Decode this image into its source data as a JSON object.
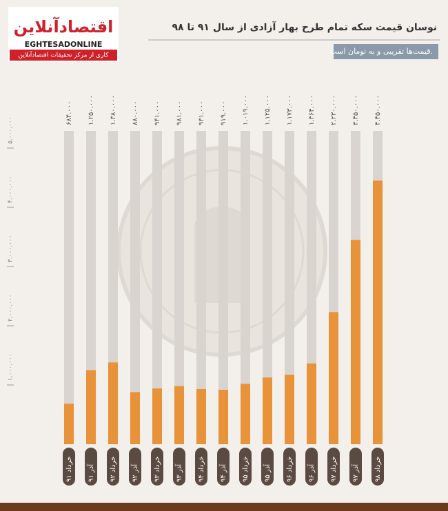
{
  "header": {
    "logo": "اقتصادآنلاین",
    "logo_latin": "EGHTESADONLINE",
    "logo_tagline": "کاری از مرکز تحقیقات اقتصادآنلاین"
  },
  "chart_data": {
    "type": "bar",
    "title": "نوسان قیمت سکه تمام طرح بهار آزادی از سال ۹۱ تا ۹۸",
    "subtitle": "قیمت‌ها تقریبی و به تومان است.",
    "categories": [
      "خرداد ۹۱",
      "آذر ۹۱",
      "خرداد ۹۲",
      "آذر ۹۲",
      "خرداد ۹۳",
      "آذر ۹۳",
      "خرداد ۹۴",
      "آذر ۹۴",
      "خرداد ۹۵",
      "آذر ۹۵",
      "خرداد ۹۶",
      "آذر ۹۶",
      "خرداد ۹۷",
      "آذر ۹۷",
      "خرداد ۹۸"
    ],
    "values": [
      684000,
      1250000,
      1380000,
      880000,
      941000,
      981000,
      931000,
      919000,
      1019000,
      1125000,
      1173000,
      1364000,
      2230000,
      3450000,
      4450000
    ],
    "value_labels": [
      "۶۸۴.۰۰۰",
      "۱.۲۵۰.۰۰۰",
      "۱.۳۸۰.۰۰۰",
      "۸۸۰.۰۰۰",
      "۹۴۱.۰۰۰",
      "۹۸۱.۰۰۰",
      "۹۳۱.۰۰۰",
      "۹۱۹.۰۰۰",
      "۱.۰۱۹.۰۰۰",
      "۱.۱۲۵.۰۰۰",
      "۱.۱۷۳.۰۰۰",
      "۱.۳۶۴.۰۰۰",
      "۲.۲۳۰.۰۰۰",
      "۳.۴۵۰.۰۰۰",
      "۴.۴۵۰.۰۰۰"
    ],
    "color": "#e8923a",
    "ylim": [
      0,
      5500000
    ],
    "yticks": [
      {
        "value": 1000000,
        "label": "۱.۰۰۰.۰۰۰"
      },
      {
        "value": 2000000,
        "label": "۲.۰۰۰.۰۰۰"
      },
      {
        "value": 3000000,
        "label": "۳.۰۰۰.۰۰۰"
      },
      {
        "value": 4000000,
        "label": "۴.۰۰۰.۰۰۰"
      },
      {
        "value": 5000000,
        "label": "۵.۰۰۰.۰۰۰"
      }
    ]
  }
}
